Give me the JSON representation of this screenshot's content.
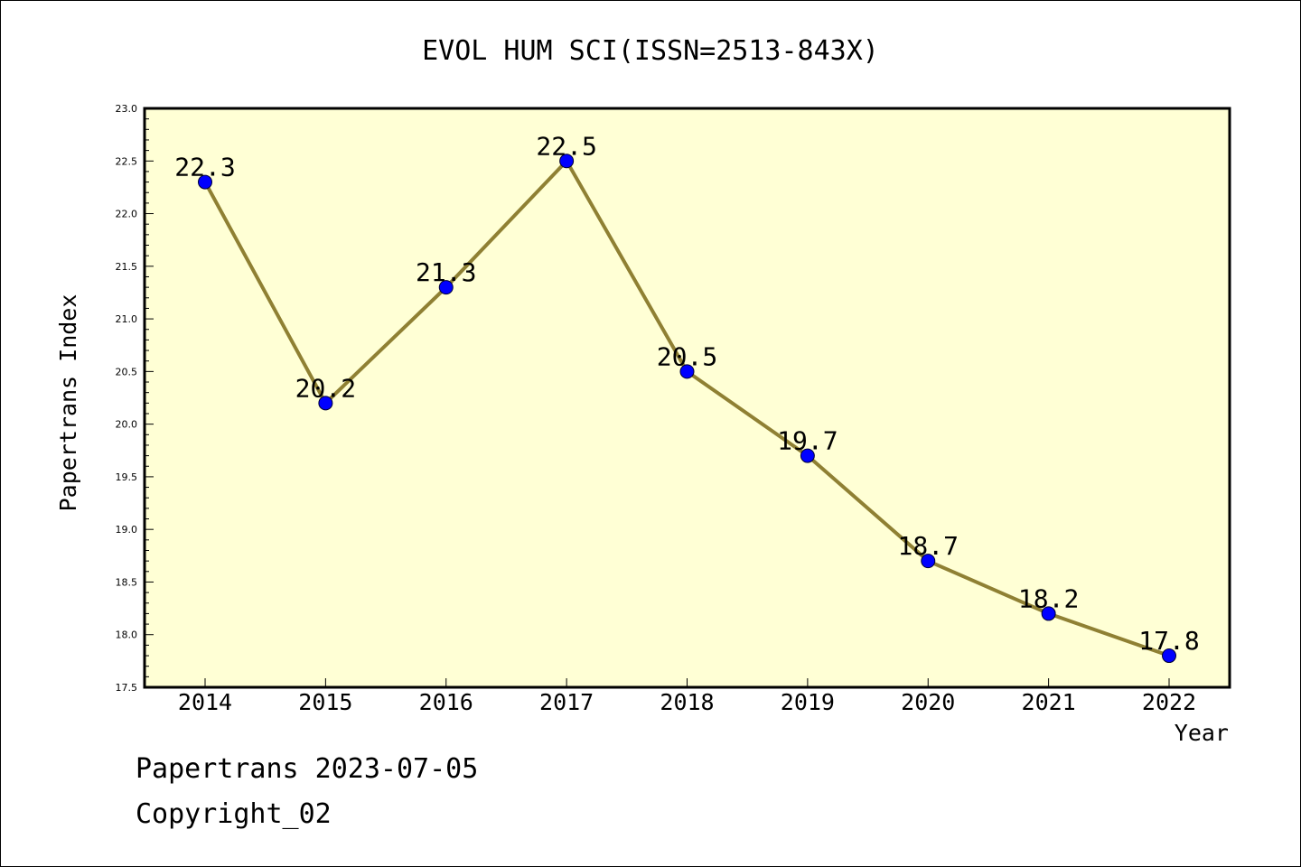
{
  "footer": {
    "line1": "Papertrans 2023-07-05",
    "line2": "Copyright_02"
  },
  "colors": {
    "plot_background": "#ffffd5",
    "line": "#8f8033",
    "marker": "#0000ff"
  },
  "chart_data": {
    "type": "line",
    "title": "EVOL HUM SCI(ISSN=2513-843X)",
    "xlabel": "Year",
    "ylabel": "Papertrans Index",
    "categories": [
      "2014",
      "2015",
      "2016",
      "2017",
      "2018",
      "2019",
      "2020",
      "2021",
      "2022"
    ],
    "series": [
      {
        "values": [
          22.3,
          20.2,
          21.3,
          22.5,
          20.5,
          19.7,
          18.7,
          18.2,
          17.8
        ],
        "value_labels": [
          "22.3",
          "20.2",
          "21.3",
          "22.5",
          "20.5",
          "19.7",
          "18.7",
          "18.2",
          "17.8"
        ]
      }
    ],
    "ylim": [
      17.5,
      23.0
    ],
    "ytick_labels": [
      "17.5",
      "18.0",
      "18.5",
      "19.0",
      "19.5",
      "20.0",
      "20.5",
      "21.0",
      "21.5",
      "22.0",
      "22.5",
      "23.0"
    ],
    "grid": false,
    "legend": "none"
  }
}
